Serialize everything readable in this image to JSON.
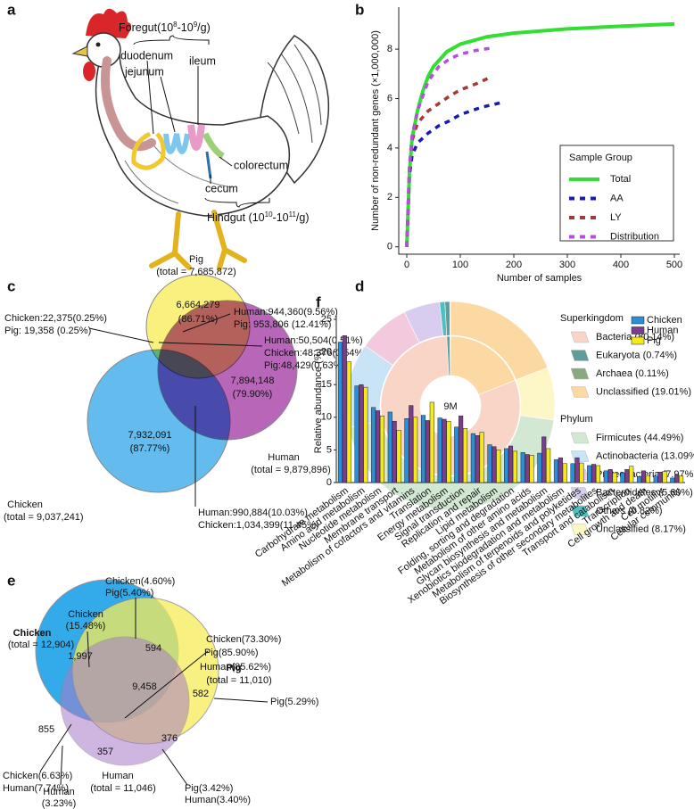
{
  "panel_labels": [
    "a",
    "b",
    "c",
    "d",
    "e",
    "f"
  ],
  "panel_a": {
    "foregut": [
      "Foregut(10",
      "8",
      "-10",
      "9",
      "/g)"
    ],
    "hindgut": [
      "Hindgut (10",
      "10",
      "-10",
      "11",
      "/g)"
    ],
    "labels": [
      "duodenum",
      "jejunum",
      "ileum",
      "colorectum",
      "cecum"
    ]
  },
  "panel_c": {
    "labels": [
      "Pig",
      "(total = 7,685,872)",
      "6,664,279",
      "(86.71%)",
      "Human:944,360(9.56%)",
      "Pig: 953,806  (12.41%)",
      "Chicken:22,375(0.25%)",
      "Pig: 19,358 (0.25%)",
      "Human:50,504(0.51%)",
      "Chicken:48,376(0.54%)",
      "Pig:48,429(0.63%)",
      "7,894,148",
      "(79.90%)",
      "7,932,091",
      "(87.77%)",
      "Human",
      "(total = 9,879,896)",
      "Chicken",
      "(total = 9,037,241)",
      "Human:990,884(10.03%)",
      "Chicken:1,034,399(11.45%)"
    ]
  },
  "panel_e": {
    "labels": [
      "Chicken(4.60%)",
      "Pig(5.40%)",
      "Chicken",
      "(15.48%)",
      "Chicken(73.30%)",
      "Pig(85.90%)",
      "Human(85.62%)",
      "Chicken",
      "(total = 12,904)",
      "1,997",
      "594",
      "Pig",
      "(total = 11,010)",
      "582",
      "Pig(5.29%)",
      "9,458",
      "855",
      "376",
      "357",
      "Chicken(6.63%)",
      "Human(7.74%)",
      "Human",
      "(total = 11,046)",
      "Pig(3.42%)",
      "Human(3.40%)",
      "Human",
      "(3.23%)"
    ]
  },
  "chart_data": [
    {
      "type": "line",
      "x_label": "Number of samples",
      "y_label": "Number of non-redundant genes (×1,000,000)",
      "legend_title": "Sample Group",
      "legend": "lower right",
      "xlim": [
        -15,
        510
      ],
      "ylim": [
        -0.3,
        9.7
      ],
      "xticks": [
        0,
        100,
        200,
        300,
        400,
        500
      ],
      "yticks": [
        0,
        2,
        4,
        6,
        8
      ],
      "series": [
        {
          "name": "Total",
          "color": "#33dd33",
          "line_style": "solid",
          "x": [
            0,
            5,
            10,
            20,
            30,
            40,
            50,
            75,
            100,
            150,
            200,
            300,
            400,
            500
          ],
          "values": [
            0,
            3,
            4.4,
            5.5,
            6.3,
            6.9,
            7.3,
            7.9,
            8.2,
            8.5,
            8.65,
            8.82,
            8.93,
            9.02
          ]
        },
        {
          "name": "AA",
          "color": "#1a1ab0",
          "line_style": "dashed",
          "x": [
            0,
            5,
            10,
            20,
            40,
            60,
            80,
            100,
            140,
            180
          ],
          "values": [
            0,
            2.9,
            3.7,
            4.2,
            4.6,
            4.9,
            5.1,
            5.35,
            5.65,
            5.85
          ]
        },
        {
          "name": "LY",
          "color": "#a33a3a",
          "line_style": "dashed",
          "x": [
            0,
            5,
            10,
            20,
            40,
            60,
            80,
            100,
            130,
            155
          ],
          "values": [
            0,
            3.2,
            4.3,
            5,
            5.5,
            5.8,
            6.1,
            6.35,
            6.6,
            6.85
          ]
        },
        {
          "name": "Distribution",
          "color": "#b44fe0",
          "line_style": "dashed",
          "x": [
            0,
            5,
            10,
            20,
            40,
            60,
            80,
            100,
            130,
            160
          ],
          "values": [
            0,
            3.3,
            4.5,
            5.5,
            6.7,
            7.3,
            7.6,
            7.8,
            7.95,
            8.05
          ]
        }
      ]
    },
    {
      "type": "pie",
      "center_label": "9M",
      "rings": [
        {
          "name": "Superkingdom",
          "labels": [
            "Bacteria (80.14%)",
            "Eukaryota (0.74%)",
            "Archaea (0.11%)",
            "Unclassified (19.01%)"
          ],
          "values": [
            80.14,
            0.74,
            0.11,
            19.01
          ],
          "colors": [
            "#f8d5c6",
            "#5f9c9c",
            "#8aa882",
            "#fcd9a3"
          ]
        },
        {
          "name": "Phylum",
          "labels": [
            "Firmicutes (44.49%)",
            "Actinobacteria (13.09%)",
            "Proteobacteria (7.97%)",
            "Bacteroidetes (5.60%)",
            "Others (0.82%)",
            "Unclassified (8.17%)"
          ],
          "values": [
            44.49,
            13.09,
            7.97,
            5.6,
            0.82,
            8.17
          ],
          "colors": [
            "#d2e8d2",
            "#c8e4f6",
            "#f3c9de",
            "#d8cdee",
            "#4fbfbf",
            "#fdf6c6"
          ]
        }
      ]
    },
    {
      "type": "bar",
      "y_label": "Relative abundance (%)",
      "legend": "upper right",
      "ylim": [
        0,
        25
      ],
      "yticks": [
        0,
        5,
        10,
        15,
        20,
        25
      ],
      "categories": [
        "Carbohydrate metabolism",
        "Amino acid metabolism",
        "Nucleotide metabolism",
        "Membrane transport",
        "Metabolism of cofactors and vitamins",
        "Translation",
        "Energy metabolism",
        "Signal transduction",
        "Replication and repair",
        "Lipid metabolism",
        "Folding, sorting and degradation",
        "Metabolism of other amino acids",
        "Glycan biosynthesis and metabolism",
        "Xenobiotics biodegradation and metabolism",
        "Metabolism of terpenoids and polyketides",
        "Biosynthesis of other secondary metabolites",
        "Transport and catabolism",
        "Transcription",
        "Cell growth and death",
        "Cell motility",
        "Cellular community"
      ],
      "series": [
        {
          "name": "Chicken",
          "color": "#2b8fd6",
          "values": [
            21.5,
            14.8,
            11.5,
            10.8,
            9.8,
            10.3,
            9.9,
            8.5,
            7.5,
            5.8,
            5.2,
            4.6,
            4.5,
            3.5,
            2.9,
            2.6,
            1.8,
            1.5,
            0.9,
            1.0,
            0.7
          ]
        },
        {
          "name": "Human",
          "color": "#7a3d8f",
          "values": [
            22.5,
            15.0,
            11.0,
            9.4,
            11.8,
            9.5,
            9.7,
            10.2,
            7.2,
            5.5,
            5.6,
            4.3,
            7.0,
            3.8,
            3.8,
            2.8,
            2.0,
            2.0,
            1.8,
            1.6,
            1.2
          ]
        },
        {
          "name": "Pig",
          "color": "#f5ea17",
          "values": [
            18.5,
            14.6,
            10.2,
            8.0,
            10.0,
            12.3,
            9.4,
            8.3,
            7.7,
            5.0,
            4.8,
            4.2,
            5.2,
            2.9,
            3.0,
            2.6,
            1.5,
            2.5,
            1.0,
            1.7,
            1.0
          ]
        }
      ]
    }
  ]
}
